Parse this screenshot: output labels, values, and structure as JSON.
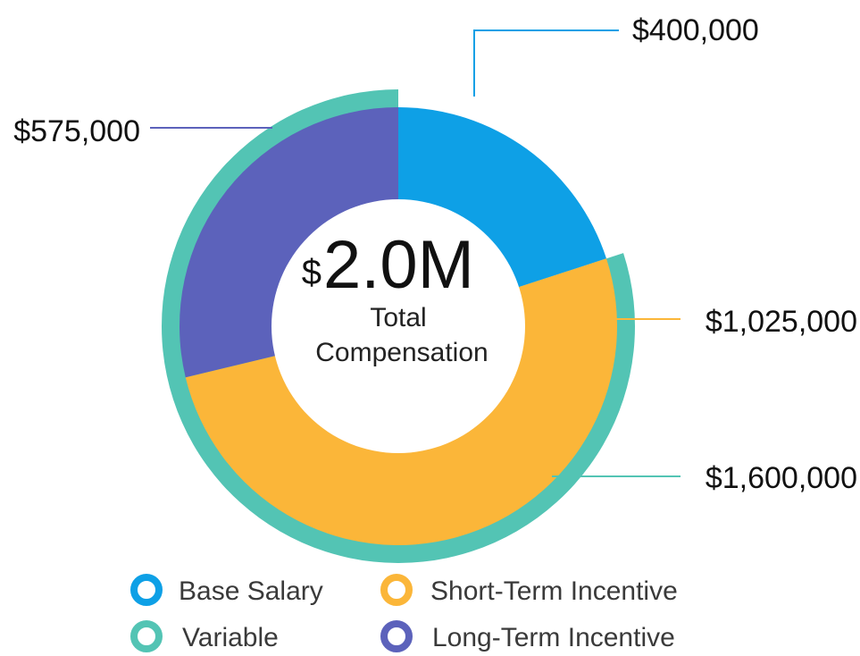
{
  "chart_data": {
    "type": "pie",
    "center": {
      "currency": "$",
      "value": "2.0M",
      "label_line1": "Total",
      "label_line2": "Compensation"
    },
    "inner_ring": [
      {
        "name": "Base Salary",
        "value": 400000,
        "label": "$400,000",
        "color": "#0ea0e6"
      },
      {
        "name": "Short-Term Incentive",
        "value": 1025000,
        "label": "$1,025,000",
        "color": "#fbb639"
      },
      {
        "name": "Long-Term Incentive",
        "value": 575000,
        "label": "$575,000",
        "color": "#5c62bb"
      }
    ],
    "outer_ring": [
      {
        "name": "Variable",
        "value": 1600000,
        "label": "$1,600,000",
        "color": "#53c4b4",
        "start_value": 400000
      }
    ],
    "total": 2000000,
    "legend": [
      {
        "name": "Base Salary",
        "color": "#0ea0e6"
      },
      {
        "name": "Short-Term Incentive",
        "color": "#fbb639"
      },
      {
        "name": "Variable",
        "color": "#53c4b4"
      },
      {
        "name": "Long-Term Incentive",
        "color": "#5c62bb"
      }
    ],
    "legend_position": "bottom"
  }
}
